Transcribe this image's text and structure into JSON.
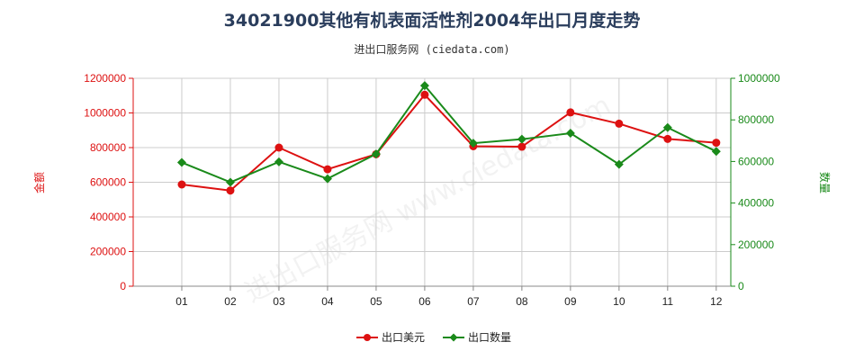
{
  "title": "34021900其他有机表面活性剂2004年出口月度走势",
  "subtitle": "进出口服务网 (ciedata.com)",
  "watermark": "进出口服务网 www.ciedata.com",
  "colors": {
    "left": "#dd1111",
    "right": "#1a8a1a",
    "grid": "#cccccc"
  },
  "chart_data": {
    "type": "line",
    "categories": [
      "01",
      "02",
      "03",
      "04",
      "05",
      "06",
      "07",
      "08",
      "09",
      "10",
      "11",
      "12"
    ],
    "left_axis": {
      "label": "金额",
      "ylim": [
        0,
        1200000
      ],
      "ticks": [
        "0",
        "200000",
        "400000",
        "600000",
        "800000",
        "1000000",
        "1200000"
      ]
    },
    "right_axis": {
      "label": "数量",
      "ylim": [
        0,
        1000000
      ],
      "ticks": [
        "0",
        "200000",
        "400000",
        "600000",
        "800000",
        "1000000"
      ]
    },
    "series": [
      {
        "name": "出口美元",
        "axis": "left",
        "color": "#dd1111",
        "values": [
          587000,
          552000,
          800000,
          675000,
          762000,
          1105000,
          808000,
          805000,
          1003000,
          938000,
          850000,
          828000
        ]
      },
      {
        "name": "出口数量",
        "axis": "right",
        "color": "#1a8a1a",
        "values": [
          595000,
          500000,
          598000,
          517000,
          636000,
          965000,
          688000,
          707000,
          736000,
          586000,
          763000,
          648000
        ]
      }
    ],
    "legend_position": "bottom-center",
    "grid": true
  }
}
